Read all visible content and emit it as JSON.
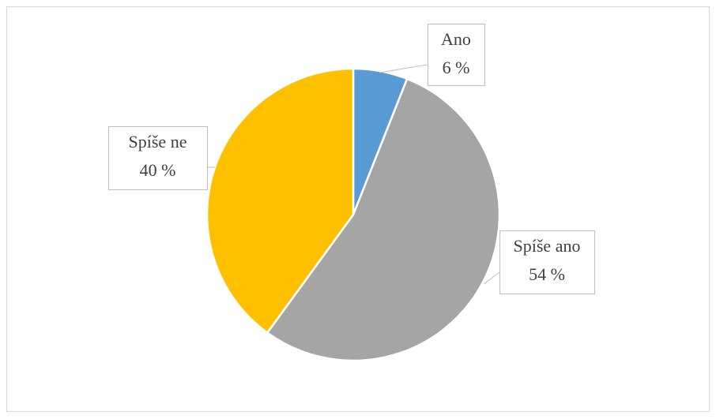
{
  "chart_data": {
    "type": "pie",
    "categories": [
      "Ano",
      "Spíše ano",
      "Spíše ne"
    ],
    "values": [
      6,
      54,
      40
    ],
    "value_labels": [
      "6 %",
      "54 %",
      "40 %"
    ],
    "colors": [
      "#5b9bd5",
      "#a5a5a5",
      "#ffc000"
    ]
  }
}
